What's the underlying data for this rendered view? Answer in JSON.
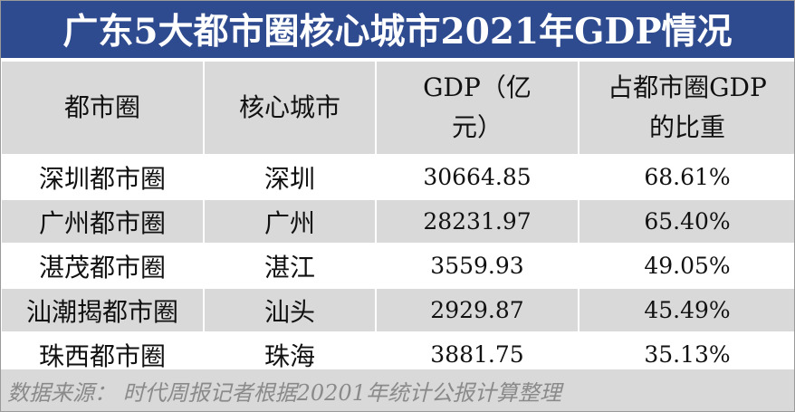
{
  "title": "广东5大都市圈核心城市2021年GDP情况",
  "headers": {
    "metro": "都市圈",
    "core_city": "核心城市",
    "gdp_line1": "GDP（亿",
    "gdp_line2": "元）",
    "share_line1": "占都市圈GDP",
    "share_line2": "的比重"
  },
  "rows": [
    {
      "metro": "深圳都市圈",
      "city": "深圳",
      "gdp": "30664.85",
      "share": "68.61%"
    },
    {
      "metro": "广州都市圈",
      "city": "广州",
      "gdp": "28231.97",
      "share": "65.40%"
    },
    {
      "metro": "湛茂都市圈",
      "city": "湛江",
      "gdp": "3559.93",
      "share": "49.05%"
    },
    {
      "metro": "汕潮揭都市圈",
      "city": "汕头",
      "gdp": "2929.87",
      "share": "45.49%"
    },
    {
      "metro": "珠西都市圈",
      "city": "珠海",
      "gdp": "3881.75",
      "share": "35.13%"
    }
  ],
  "source": "数据来源： 时代周报记者根据20201年统计公报计算整理",
  "colors": {
    "title_bg": "#2f4b8f",
    "row_alt": "#d9d9d9"
  }
}
